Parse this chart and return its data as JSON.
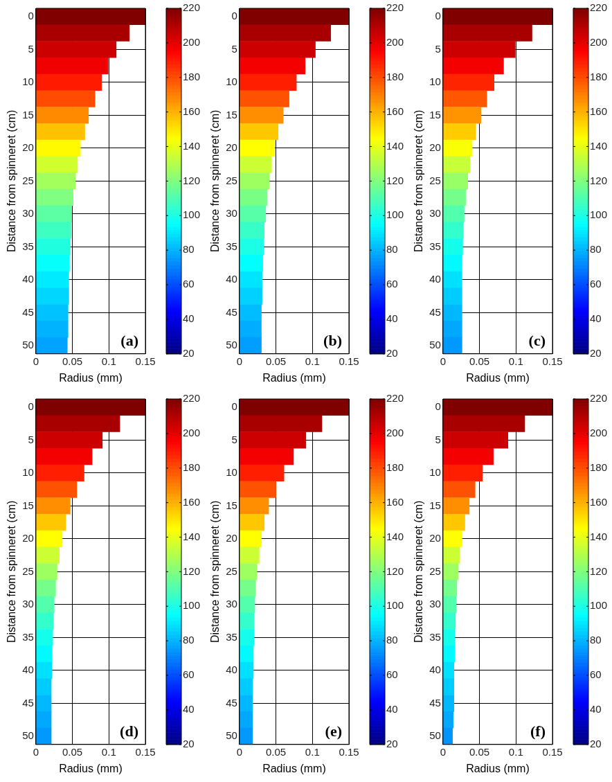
{
  "chart_data": [
    {
      "type": "bar",
      "orientation": "horizontal",
      "xlabel": "Radius (mm)",
      "ylabel": "Distance from spinneret (cm)",
      "categories": [
        "0",
        null,
        "5",
        null,
        "10",
        null,
        "15",
        null,
        "20",
        null,
        "25",
        null,
        "30",
        null,
        "35",
        null,
        "40",
        null,
        "45",
        null,
        "50"
      ],
      "values": [
        0.15,
        0.128,
        0.11,
        0.099,
        0.09,
        0.081,
        0.072,
        0.067,
        0.061,
        0.057,
        0.054,
        0.051,
        0.049,
        0.048,
        0.047,
        0.046,
        0.045,
        0.045,
        0.044,
        0.044,
        0.043
      ],
      "cvalues": [
        220,
        212,
        205,
        198,
        190,
        180,
        168,
        157,
        146,
        136,
        127,
        120,
        113,
        107,
        101,
        96,
        91,
        87,
        83,
        80,
        77
      ],
      "clim": [
        20,
        220
      ],
      "cticks": [
        20,
        40,
        60,
        80,
        100,
        120,
        140,
        160,
        180,
        200,
        220
      ],
      "xlim": [
        0,
        0.15
      ],
      "xticks": [
        0,
        0.05,
        0.1,
        0.15
      ],
      "grid": true,
      "annotations": [
        "(a)"
      ]
    },
    {
      "type": "bar",
      "orientation": "horizontal",
      "xlabel": "Radius (mm)",
      "ylabel": "Distance from spinneret (cm)",
      "categories": [
        "0",
        null,
        "5",
        null,
        "10",
        null,
        "15",
        null,
        "20",
        null,
        "25",
        null,
        "30",
        null,
        "35",
        null,
        "40",
        null,
        "45",
        null,
        "50"
      ],
      "values": [
        0.15,
        0.125,
        0.104,
        0.09,
        0.078,
        0.068,
        0.06,
        0.053,
        0.048,
        0.044,
        0.041,
        0.038,
        0.036,
        0.034,
        0.033,
        0.032,
        0.031,
        0.031,
        0.03,
        0.03,
        0.03
      ],
      "cvalues": [
        220,
        212,
        205,
        197,
        189,
        179,
        167,
        156,
        145,
        135,
        126,
        119,
        112,
        106,
        100,
        95,
        90,
        86,
        82,
        79,
        76
      ],
      "clim": [
        20,
        220
      ],
      "cticks": [
        20,
        40,
        60,
        80,
        100,
        120,
        140,
        160,
        180,
        200,
        220
      ],
      "xlim": [
        0,
        0.15
      ],
      "xticks": [
        0,
        0.05,
        0.1,
        0.15
      ],
      "grid": true,
      "annotations": [
        "(b)"
      ]
    },
    {
      "type": "bar",
      "orientation": "horizontal",
      "xlabel": "Radius (mm)",
      "ylabel": "Distance from spinneret (cm)",
      "categories": [
        "0",
        null,
        "5",
        null,
        "10",
        null,
        "15",
        null,
        "20",
        null,
        "25",
        null,
        "30",
        null,
        "35",
        null,
        "40",
        null,
        "45",
        null,
        "50"
      ],
      "values": [
        0.15,
        0.122,
        0.099,
        0.083,
        0.07,
        0.06,
        0.052,
        0.045,
        0.04,
        0.037,
        0.034,
        0.031,
        0.029,
        0.028,
        0.027,
        0.026,
        0.026,
        0.026,
        0.026,
        0.026,
        0.026
      ],
      "cvalues": [
        220,
        212,
        205,
        197,
        188,
        178,
        166,
        155,
        144,
        134,
        125,
        118,
        111,
        105,
        99,
        94,
        89,
        85,
        81,
        78,
        75
      ],
      "clim": [
        20,
        220
      ],
      "cticks": [
        20,
        40,
        60,
        80,
        100,
        120,
        140,
        160,
        180,
        200,
        220
      ],
      "xlim": [
        0,
        0.15
      ],
      "xticks": [
        0,
        0.05,
        0.1,
        0.15
      ],
      "grid": true,
      "annotations": [
        "(c)"
      ]
    },
    {
      "type": "bar",
      "orientation": "horizontal",
      "xlabel": "Radius (mm)",
      "ylabel": "Distance from spinneret (cm)",
      "categories": [
        "0",
        null,
        "5",
        null,
        "10",
        null,
        "15",
        null,
        "20",
        null,
        "25",
        null,
        "30",
        null,
        "35",
        null,
        "40",
        null,
        "45",
        null,
        "50"
      ],
      "values": [
        0.15,
        0.115,
        0.091,
        0.077,
        0.066,
        0.056,
        0.047,
        0.041,
        0.036,
        0.032,
        0.029,
        0.027,
        0.025,
        0.024,
        0.023,
        0.022,
        0.022,
        0.021,
        0.021,
        0.021,
        0.021
      ],
      "cvalues": [
        220,
        212,
        205,
        197,
        189,
        179,
        167,
        156,
        145,
        135,
        126,
        118,
        111,
        105,
        99,
        94,
        89,
        85,
        81,
        78,
        75
      ],
      "clim": [
        20,
        220
      ],
      "cticks": [
        20,
        40,
        60,
        80,
        100,
        120,
        140,
        160,
        180,
        200,
        220
      ],
      "xlim": [
        0,
        0.15
      ],
      "xticks": [
        0,
        0.05,
        0.1,
        0.15
      ],
      "grid": true,
      "annotations": [
        "(d)"
      ]
    },
    {
      "type": "bar",
      "orientation": "horizontal",
      "xlabel": "Radius (mm)",
      "ylabel": "Distance from spinneret (cm)",
      "categories": [
        "0",
        null,
        "5",
        null,
        "10",
        null,
        "15",
        null,
        "20",
        null,
        "25",
        null,
        "30",
        null,
        "35",
        null,
        "40",
        null,
        "45",
        null,
        "50"
      ],
      "values": [
        0.15,
        0.113,
        0.091,
        0.074,
        0.061,
        0.05,
        0.04,
        0.034,
        0.03,
        0.027,
        0.024,
        0.022,
        0.021,
        0.02,
        0.02,
        0.019,
        0.019,
        0.018,
        0.018,
        0.018,
        0.018
      ],
      "cvalues": [
        220,
        212,
        205,
        197,
        189,
        179,
        167,
        156,
        145,
        135,
        126,
        118,
        111,
        105,
        99,
        94,
        89,
        85,
        81,
        78,
        75
      ],
      "clim": [
        20,
        220
      ],
      "cticks": [
        20,
        40,
        60,
        80,
        100,
        120,
        140,
        160,
        180,
        200,
        220
      ],
      "xlim": [
        0,
        0.15
      ],
      "xticks": [
        0,
        0.05,
        0.1,
        0.15
      ],
      "grid": true,
      "annotations": [
        "(e)"
      ]
    },
    {
      "type": "bar",
      "orientation": "horizontal",
      "xlabel": "Radius (mm)",
      "ylabel": "Distance from spinneret (cm)",
      "categories": [
        "0",
        null,
        "5",
        null,
        "10",
        null,
        "15",
        null,
        "20",
        null,
        "25",
        null,
        "30",
        null,
        "35",
        null,
        "40",
        null,
        "45",
        null,
        "50"
      ],
      "values": [
        0.15,
        0.112,
        0.089,
        0.069,
        0.054,
        0.044,
        0.036,
        0.03,
        0.026,
        0.023,
        0.021,
        0.019,
        0.018,
        0.017,
        0.016,
        0.016,
        0.015,
        0.015,
        0.015,
        0.014,
        0.013
      ],
      "cvalues": [
        220,
        212,
        205,
        197,
        189,
        179,
        167,
        156,
        145,
        135,
        126,
        118,
        111,
        105,
        99,
        94,
        89,
        85,
        81,
        78,
        74
      ],
      "clim": [
        20,
        220
      ],
      "cticks": [
        20,
        40,
        60,
        80,
        100,
        120,
        140,
        160,
        180,
        200,
        220
      ],
      "xlim": [
        0,
        0.15
      ],
      "xticks": [
        0,
        0.05,
        0.1,
        0.15
      ],
      "grid": true,
      "annotations": [
        "(f)"
      ]
    }
  ]
}
